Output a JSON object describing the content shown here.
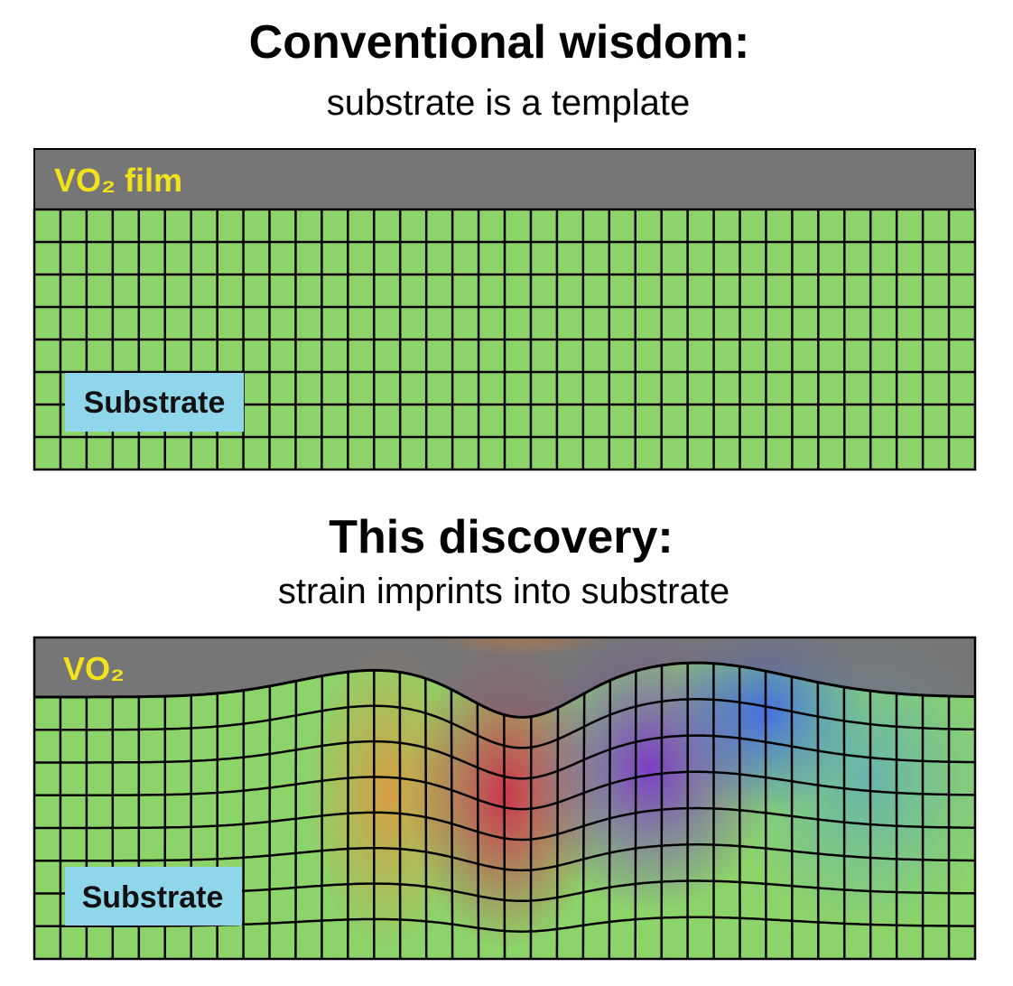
{
  "panels": [
    {
      "title": "Conventional wisdom:",
      "subtitle": "substrate is a template",
      "film_label": "VO₂ film",
      "substrate_label": "Substrate"
    },
    {
      "title": "This discovery:",
      "subtitle": "strain imprints into substrate",
      "film_label": "VO₂",
      "substrate_label": "Substrate"
    }
  ]
}
